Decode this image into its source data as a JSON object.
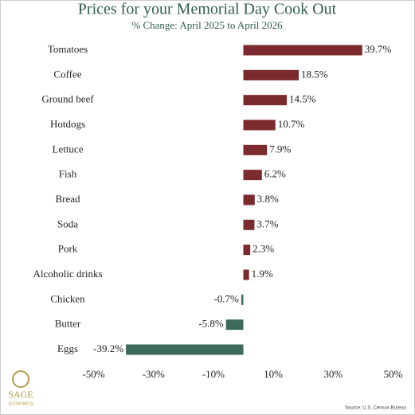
{
  "chart_data": {
    "type": "hbar",
    "title": "Prices for your Memorial Day Cook Out",
    "subtitle": "% Change: April 2025 to April 2026",
    "categories": [
      "Tomatoes",
      "Coffee",
      "Ground beef",
      "Hotdogs",
      "Lettuce",
      "Fish",
      "Bread",
      "Soda",
      "Pork",
      "Alcoholic drinks",
      "Chicken",
      "Butter",
      "Eggs"
    ],
    "values": [
      39.7,
      18.5,
      14.5,
      10.7,
      7.9,
      6.2,
      3.8,
      3.7,
      2.3,
      1.9,
      -0.7,
      -5.8,
      -39.2
    ],
    "value_labels": [
      "39.7%",
      "18.5%",
      "14.5%",
      "10.7%",
      "7.9%",
      "6.2%",
      "3.8%",
      "3.7%",
      "2.3%",
      "1.9%",
      "-0.7%",
      "-5.8%",
      "-39.2%"
    ],
    "positive_color": "#7b2a2e",
    "negative_color": "#3d6b59",
    "xlim": [
      -50,
      50
    ],
    "xticks": [
      {
        "value": -50,
        "label": "-50%"
      },
      {
        "value": -30,
        "label": "-30%"
      },
      {
        "value": -10,
        "label": "-10%"
      },
      {
        "value": 10,
        "label": "10%"
      },
      {
        "value": 30,
        "label": "30%"
      },
      {
        "value": 50,
        "label": "50%"
      }
    ],
    "source": "Source: U.S. Census Bureau",
    "brand": "SAGE",
    "brand_sub": "ECONOMICS"
  }
}
